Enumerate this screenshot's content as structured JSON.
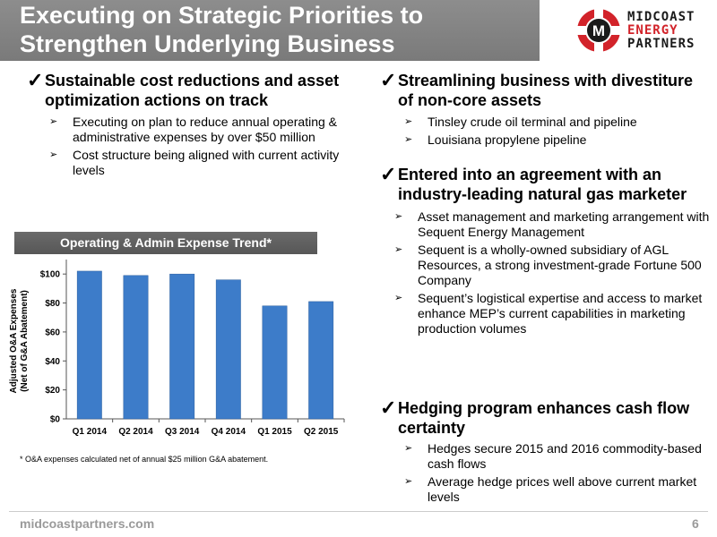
{
  "header": {
    "title_line1": "Executing on Strategic Priorities to",
    "title_line2": "Strengthen Underlying Business",
    "logo": {
      "word1": "MIDCOAST",
      "word2": "ENERGY",
      "word3": "PARTNERS",
      "letter": "M",
      "brand_red": "#d2232a",
      "brand_dark": "#1a1a1a"
    }
  },
  "left": {
    "heading1": "Sustainable cost reductions and asset optimization actions on track",
    "bullets1": [
      "Executing on plan to reduce annual operating & administrative expenses by over $50 million",
      "Cost structure being aligned with current activity levels"
    ],
    "chart_title": "Operating & Admin Expense Trend*",
    "footnote": "* O&A expenses calculated net of annual $25 million G&A abatement."
  },
  "right": {
    "heading1": "Streamlining business with divestiture of non-core assets",
    "bullets1": [
      "Tinsley crude oil terminal and pipeline",
      "Louisiana propylene pipeline"
    ],
    "heading2": "Entered into an agreement with an industry-leading natural gas marketer",
    "bullets2": [
      "Asset management and marketing arrangement with Sequent Energy Management",
      "Sequent is a wholly-owned subsidiary of AGL Resources, a strong investment-grade Fortune 500 Company",
      "Sequent’s logistical expertise and access to market enhance MEP’s current capabilities in marketing production volumes"
    ],
    "heading3": "Hedging program enhances cash flow certainty",
    "bullets3": [
      "Hedges secure 2015 and 2016 commodity-based cash flows",
      "Average hedge prices well above current market levels"
    ]
  },
  "icons": {
    "check": "check-mark-icon",
    "arrow": "arrow-bullet-icon"
  },
  "footer": {
    "url": "midcoastpartners.com",
    "page": "6"
  },
  "chart_data": {
    "type": "bar",
    "title": "Operating & Admin Expense Trend*",
    "ylabel_line1": "Adjusted O&A Expenses",
    "ylabel_line2": "(Net of G&A Abatement)",
    "categories": [
      "Q1 2014",
      "Q2 2014",
      "Q3 2014",
      "Q4 2014",
      "Q1 2015",
      "Q2 2015"
    ],
    "values": [
      102,
      99,
      100,
      96,
      78,
      81
    ],
    "yticks": [
      "$0",
      "$20",
      "$40",
      "$60",
      "$80",
      "$100"
    ],
    "ylim": [
      0,
      110
    ],
    "bar_color": "#3d7cc9",
    "grid": false,
    "legend": "none"
  }
}
